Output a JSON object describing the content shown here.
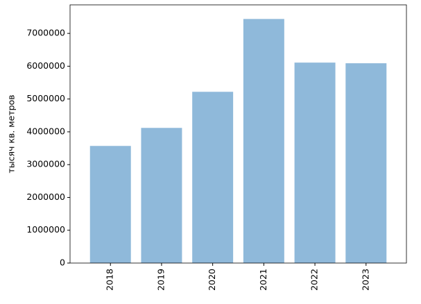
{
  "chart_data": {
    "type": "bar",
    "ylabel": "тысяч кв. метров",
    "categories": [
      "2018",
      "2019",
      "2020",
      "2021",
      "2022",
      "2023"
    ],
    "values": [
      3570000,
      4120000,
      5220000,
      7440000,
      6110000,
      6090000
    ],
    "color": "#8fb9da",
    "ylim": [
      0,
      7870000
    ],
    "yticks": [
      0,
      1000000,
      2000000,
      3000000,
      4000000,
      5000000,
      6000000,
      7000000
    ]
  }
}
